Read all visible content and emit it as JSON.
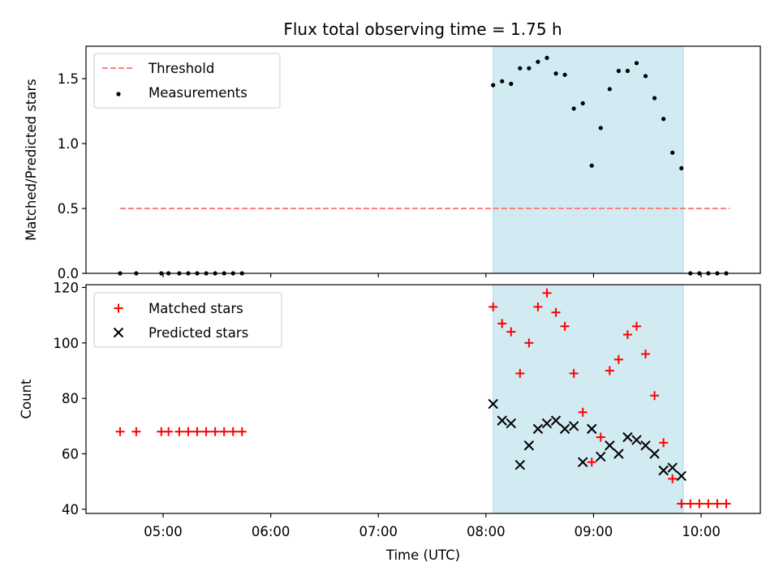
{
  "chart_data": {
    "title": "Flux total observing time = 1.75 h",
    "xlabel": "Time (UTC)",
    "xlim": [
      "04:17",
      "10:33"
    ],
    "x_ticks": [
      "05:00",
      "06:00",
      "07:00",
      "08:00",
      "09:00",
      "10:00"
    ],
    "observing_window": {
      "start": "08:04",
      "end": "09:50",
      "color": "#add8e6"
    },
    "panels": [
      {
        "type": "scatter",
        "ylabel": "Matched/Predicted stars",
        "ylim": [
          0,
          1.75
        ],
        "y_ticks": [
          "0.0",
          "0.5",
          "1.0",
          "1.5"
        ],
        "legend_position": "top-left",
        "legend": [
          "Threshold",
          "Measurements"
        ],
        "threshold": {
          "name": "Threshold",
          "value": 0.5,
          "x_start": "04:36",
          "x_end": "10:16",
          "color": "#ff8080",
          "style": "dashed"
        },
        "series": [
          {
            "name": "Measurements",
            "marker": "dot",
            "color": "#000000",
            "points": [
              [
                "04:36",
                0
              ],
              [
                "04:45",
                0
              ],
              [
                "04:59",
                0
              ],
              [
                "05:03",
                0
              ],
              [
                "05:09",
                0
              ],
              [
                "05:14",
                0
              ],
              [
                "05:19",
                0
              ],
              [
                "05:24",
                0
              ],
              [
                "05:29",
                0
              ],
              [
                "05:34",
                0
              ],
              [
                "05:39",
                0
              ],
              [
                "05:44",
                0
              ],
              [
                "08:04",
                1.45
              ],
              [
                "08:09",
                1.48
              ],
              [
                "08:14",
                1.46
              ],
              [
                "08:19",
                1.58
              ],
              [
                "08:24",
                1.58
              ],
              [
                "08:29",
                1.63
              ],
              [
                "08:34",
                1.66
              ],
              [
                "08:39",
                1.54
              ],
              [
                "08:44",
                1.53
              ],
              [
                "08:49",
                1.27
              ],
              [
                "08:54",
                1.31
              ],
              [
                "08:59",
                0.83
              ],
              [
                "09:04",
                1.12
              ],
              [
                "09:09",
                1.42
              ],
              [
                "09:14",
                1.56
              ],
              [
                "09:19",
                1.56
              ],
              [
                "09:24",
                1.62
              ],
              [
                "09:29",
                1.52
              ],
              [
                "09:34",
                1.35
              ],
              [
                "09:39",
                1.19
              ],
              [
                "09:44",
                0.93
              ],
              [
                "09:49",
                0.81
              ],
              [
                "09:54",
                0
              ],
              [
                "09:59",
                0
              ],
              [
                "10:04",
                0
              ],
              [
                "10:09",
                0
              ],
              [
                "10:14",
                0
              ]
            ]
          }
        ]
      },
      {
        "type": "scatter",
        "ylabel": "Count",
        "ylim": [
          38.5,
          121
        ],
        "y_ticks": [
          "40",
          "60",
          "80",
          "100",
          "120"
        ],
        "legend_position": "top-left",
        "legend": [
          "Matched stars",
          "Predicted stars"
        ],
        "series": [
          {
            "name": "Matched stars",
            "marker": "plus",
            "color": "#ff0000",
            "points": [
              [
                "04:36",
                68
              ],
              [
                "04:45",
                68
              ],
              [
                "04:59",
                68
              ],
              [
                "05:03",
                68
              ],
              [
                "05:09",
                68
              ],
              [
                "05:14",
                68
              ],
              [
                "05:19",
                68
              ],
              [
                "05:24",
                68
              ],
              [
                "05:29",
                68
              ],
              [
                "05:34",
                68
              ],
              [
                "05:39",
                68
              ],
              [
                "05:44",
                68
              ],
              [
                "08:04",
                113
              ],
              [
                "08:09",
                107
              ],
              [
                "08:14",
                104
              ],
              [
                "08:19",
                89
              ],
              [
                "08:24",
                100
              ],
              [
                "08:29",
                113
              ],
              [
                "08:34",
                118
              ],
              [
                "08:39",
                111
              ],
              [
                "08:44",
                106
              ],
              [
                "08:49",
                89
              ],
              [
                "08:54",
                75
              ],
              [
                "08:59",
                57
              ],
              [
                "09:04",
                66
              ],
              [
                "09:09",
                90
              ],
              [
                "09:14",
                94
              ],
              [
                "09:19",
                103
              ],
              [
                "09:24",
                106
              ],
              [
                "09:29",
                96
              ],
              [
                "09:34",
                81
              ],
              [
                "09:39",
                64
              ],
              [
                "09:44",
                51
              ],
              [
                "09:49",
                42
              ],
              [
                "09:54",
                42
              ],
              [
                "09:59",
                42
              ],
              [
                "10:04",
                42
              ],
              [
                "10:09",
                42
              ],
              [
                "10:14",
                42
              ]
            ]
          },
          {
            "name": "Predicted stars",
            "marker": "cross",
            "color": "#000000",
            "points": [
              [
                "08:04",
                78
              ],
              [
                "08:09",
                72
              ],
              [
                "08:14",
                71
              ],
              [
                "08:19",
                56
              ],
              [
                "08:24",
                63
              ],
              [
                "08:29",
                69
              ],
              [
                "08:34",
                71
              ],
              [
                "08:39",
                72
              ],
              [
                "08:44",
                69
              ],
              [
                "08:49",
                70
              ],
              [
                "08:54",
                57
              ],
              [
                "08:59",
                69
              ],
              [
                "09:04",
                59
              ],
              [
                "09:09",
                63
              ],
              [
                "09:14",
                60
              ],
              [
                "09:19",
                66
              ],
              [
                "09:24",
                65
              ],
              [
                "09:29",
                63
              ],
              [
                "09:34",
                60
              ],
              [
                "09:39",
                54
              ],
              [
                "09:44",
                55
              ],
              [
                "09:49",
                52
              ]
            ]
          }
        ]
      }
    ]
  }
}
